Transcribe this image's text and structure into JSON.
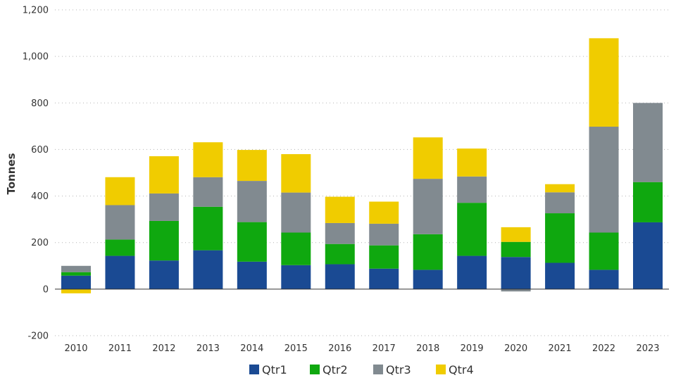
{
  "chart_data": {
    "type": "bar",
    "stacked": true,
    "categories": [
      "2010",
      "2011",
      "2012",
      "2013",
      "2014",
      "2015",
      "2016",
      "2017",
      "2018",
      "2019",
      "2020",
      "2021",
      "2022",
      "2023"
    ],
    "series": [
      {
        "name": "Qtr1",
        "color": "#1a4a93",
        "values": [
          58,
          143,
          123,
          167,
          118,
          103,
          107,
          88,
          83,
          143,
          138,
          113,
          83,
          287
        ]
      },
      {
        "name": "Qtr2",
        "color": "#0fa80f",
        "values": [
          15,
          70,
          170,
          187,
          170,
          140,
          87,
          100,
          153,
          228,
          65,
          213,
          160,
          173
        ]
      },
      {
        "name": "Qtr3",
        "color": "#818a90",
        "values": [
          27,
          148,
          118,
          127,
          177,
          172,
          90,
          93,
          238,
          113,
          -10,
          90,
          455,
          340
        ]
      },
      {
        "name": "Qtr4",
        "color": "#f0cc00",
        "values": [
          -18,
          120,
          160,
          150,
          133,
          165,
          113,
          95,
          178,
          120,
          63,
          35,
          380,
          0
        ]
      }
    ],
    "title": "",
    "xlabel": "",
    "ylabel": "Tonnes",
    "ylim": [
      -200,
      1200
    ],
    "yticks": [
      -200,
      0,
      200,
      400,
      600,
      800,
      1000,
      1200
    ],
    "ytick_labels": [
      "-200",
      "0",
      "200",
      "400",
      "600",
      "800",
      "1,000",
      "1,200"
    ],
    "grid": true,
    "legend": "bottom"
  }
}
